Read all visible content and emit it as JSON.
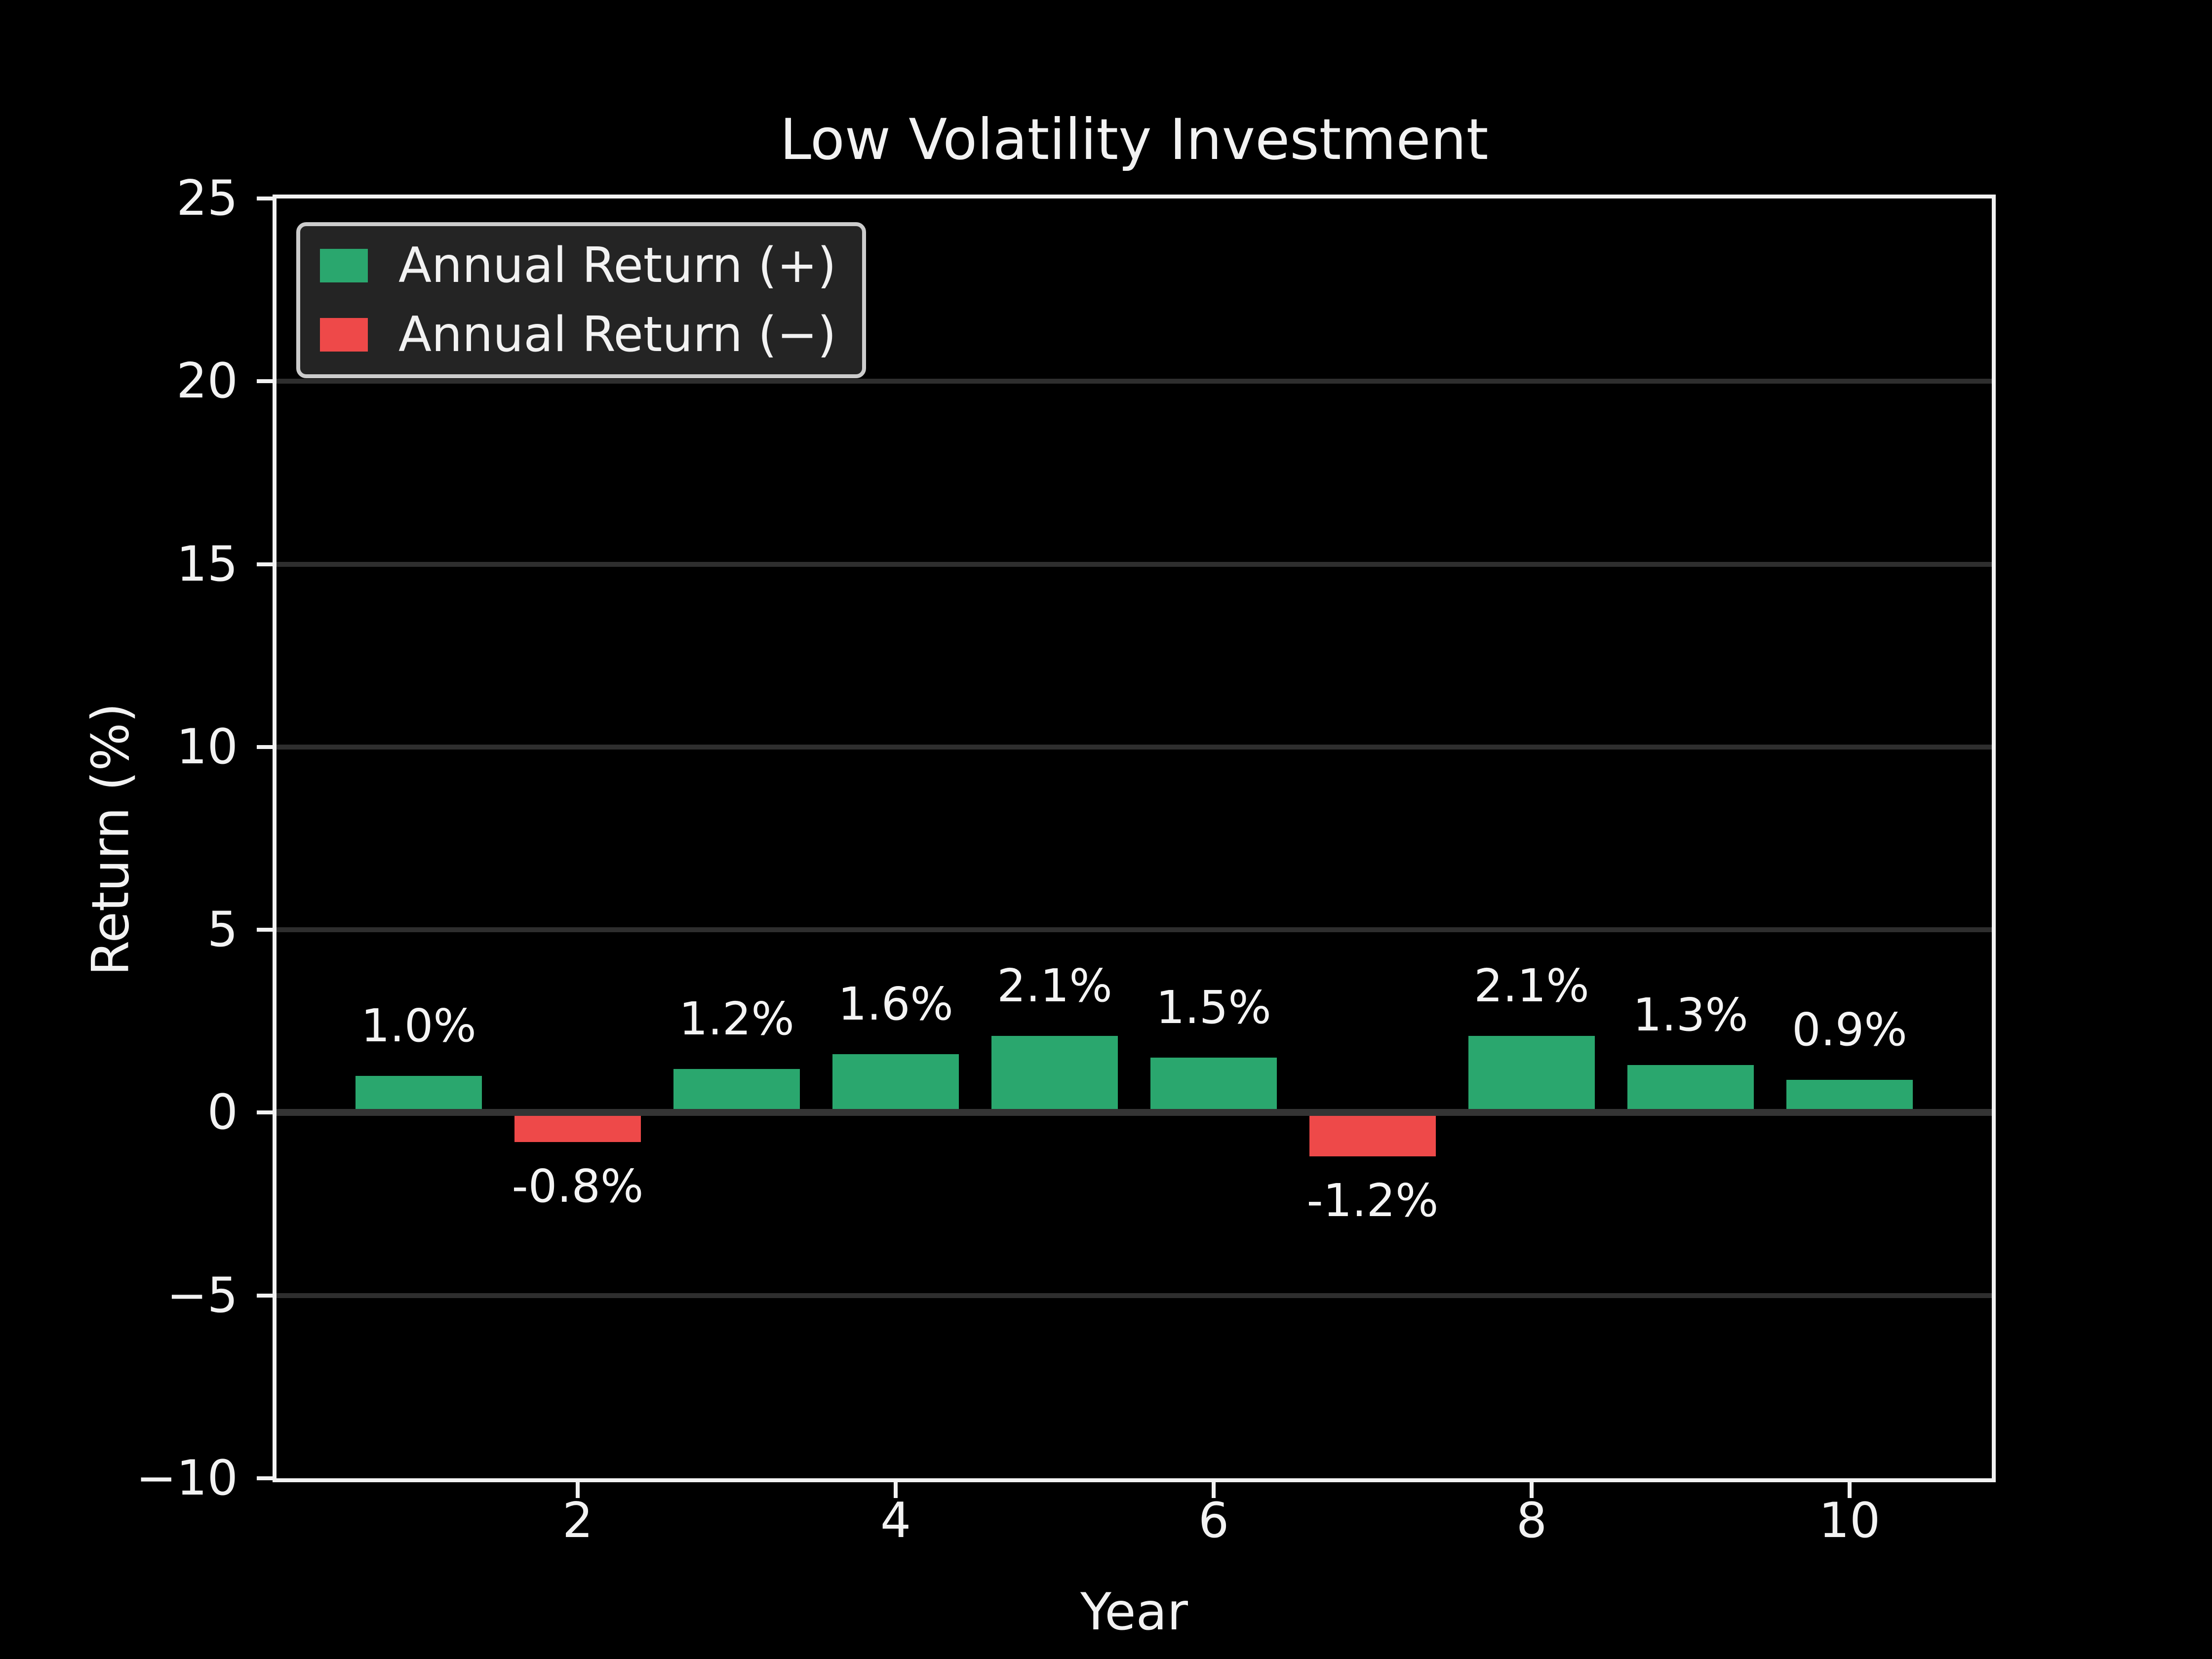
{
  "chart_data": {
    "type": "bar",
    "title": "Low Volatility Investment",
    "xlabel": "Year",
    "ylabel": "Return (%)",
    "x": [
      1,
      2,
      3,
      4,
      5,
      6,
      7,
      8,
      9,
      10
    ],
    "values": [
      1.0,
      -0.8,
      1.2,
      1.6,
      2.1,
      1.5,
      -1.2,
      2.1,
      1.3,
      0.9
    ],
    "bar_labels": [
      "1.0%",
      "-0.8%",
      "1.2%",
      "1.6%",
      "2.1%",
      "1.5%",
      "-1.2%",
      "2.1%",
      "1.3%",
      "0.9%"
    ],
    "ylim": [
      -10,
      25
    ],
    "yticks": [
      25,
      20,
      15,
      10,
      5,
      0,
      -5,
      -10
    ],
    "ytick_labels": [
      "25",
      "20",
      "15",
      "10",
      "5",
      "0",
      "−5",
      "−10"
    ],
    "xticks": [
      2,
      4,
      6,
      8,
      10
    ],
    "xtick_labels": [
      "2",
      "4",
      "6",
      "8",
      "10"
    ],
    "grid": "horizontal",
    "legend": {
      "position": "upper left",
      "entries": [
        {
          "label": "Annual Return (+)",
          "color": "#2aa76e"
        },
        {
          "label": "Annual Return (−)",
          "color": "#ee4949"
        }
      ]
    },
    "colors": {
      "positive_bar": "#2aa76e",
      "negative_bar": "#ee4949",
      "background": "#000000",
      "text": "#f2f2f2",
      "grid": "#2e2e2e",
      "zero_line": "#343434",
      "spine": "#f2f2f2",
      "legend_background": "#242424",
      "legend_border": "#cccccc"
    }
  }
}
